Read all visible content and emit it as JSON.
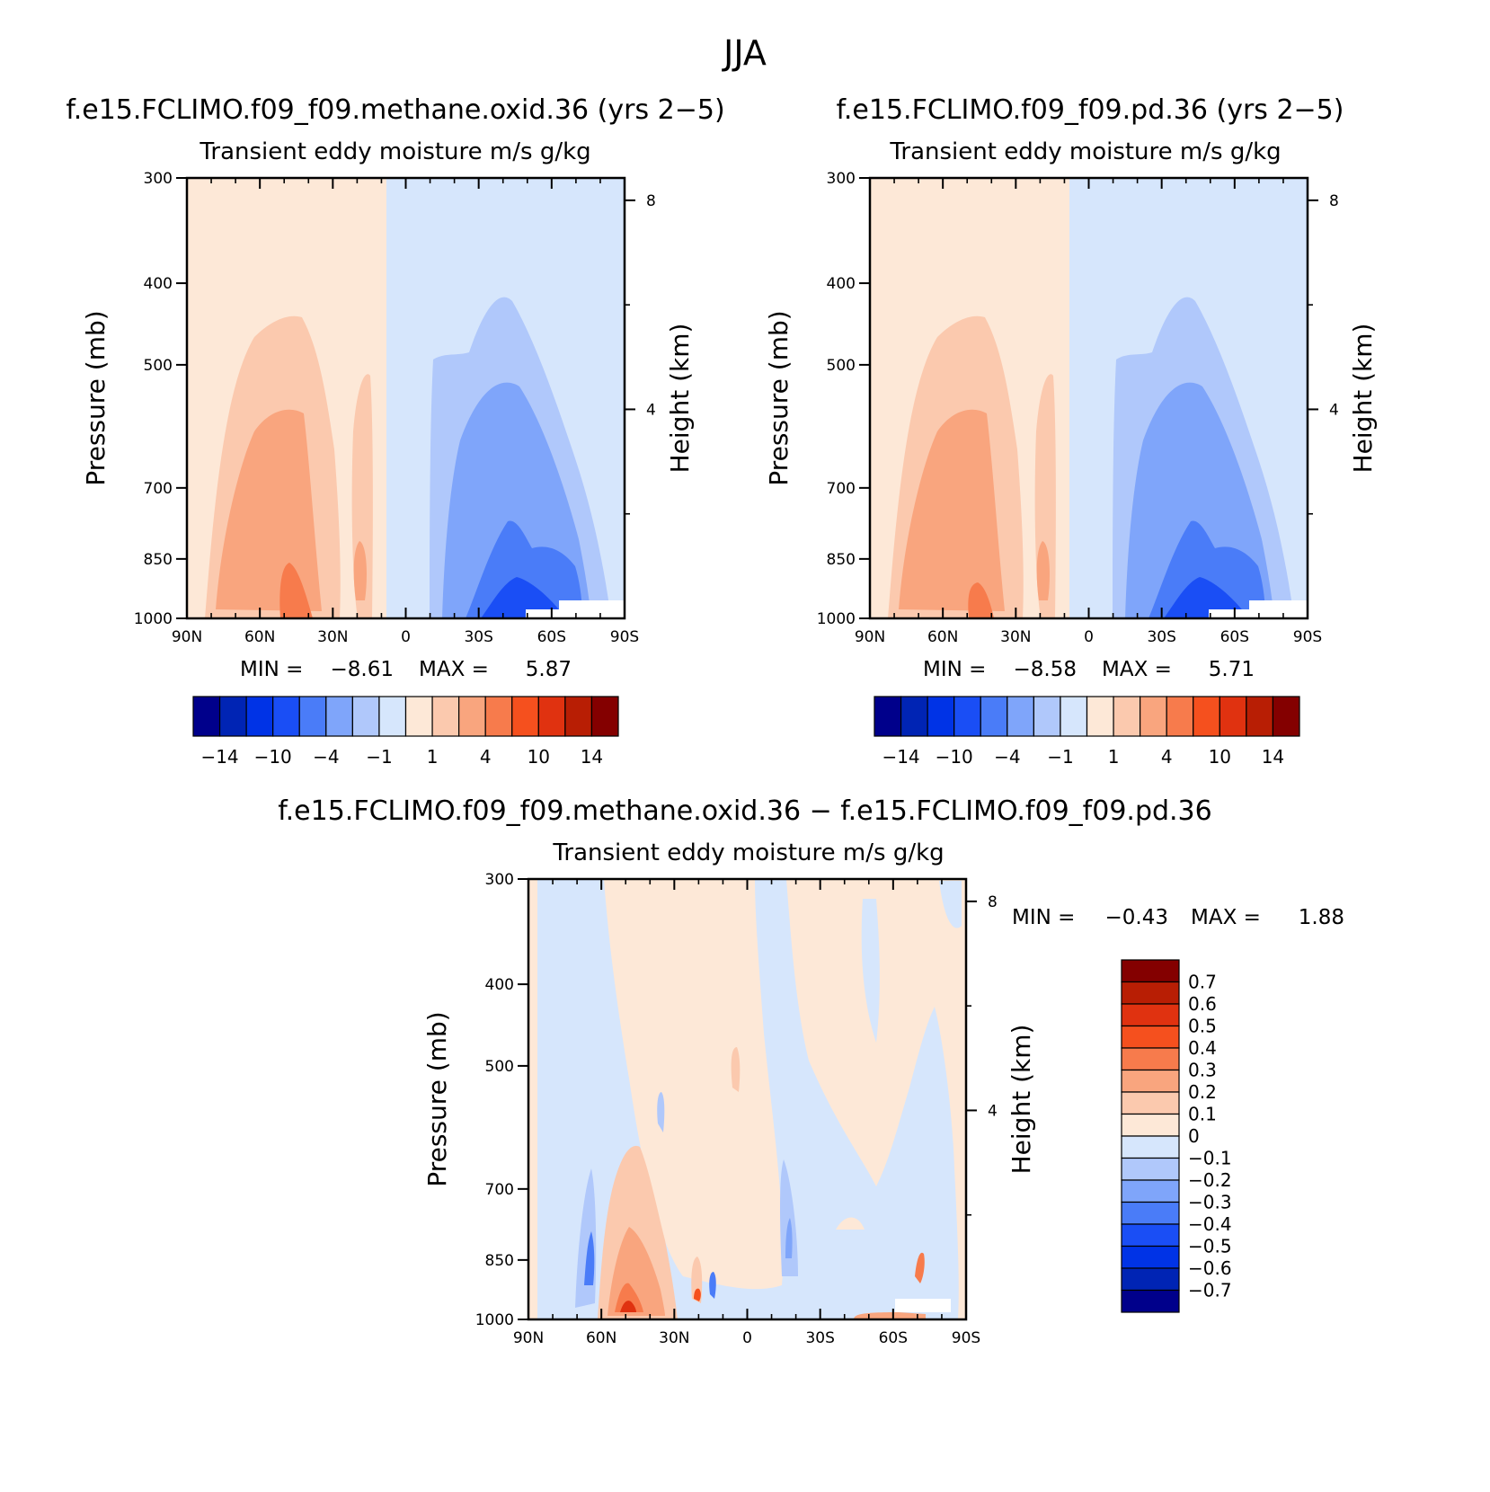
{
  "figure_title": "JJA",
  "palette": {
    "blue": [
      "#00008b",
      "#0024b4",
      "#0033e6",
      "#1a4ef5",
      "#4a7cf8",
      "#7fa5fa",
      "#b0c8fb",
      "#d6e6fc"
    ],
    "red": [
      "#fde8d7",
      "#fbc9ae",
      "#f9a57e",
      "#f77b4c",
      "#f5501e",
      "#e03210",
      "#b81e04",
      "#840000"
    ]
  },
  "chart_data": [
    {
      "type": "contour",
      "id": "panel-methane",
      "title": "f.e15.FCLIMO.f09_f09.methane.oxid.36 (yrs 2−5)",
      "variable": "Transient eddy moisture m/s g/kg",
      "xlabel": "",
      "ylabel": "Pressure (mb)",
      "ylabel_right": "Height (km)",
      "x_ticks": [
        "90N",
        "60N",
        "30N",
        "0",
        "30S",
        "60S",
        "90S"
      ],
      "y_ticks": [
        "300",
        "400",
        "500",
        "700",
        "850",
        "1000"
      ],
      "y_ticks_right": [
        "8",
        "4"
      ],
      "x_range": [
        90,
        -90
      ],
      "y_range_mb": [
        1000,
        300
      ],
      "min_label": "MIN =",
      "min_value": "−8.61",
      "max_label": "MAX =",
      "max_value": "5.87",
      "min": -8.61,
      "max": 5.87,
      "colorbar_labels": [
        "−14",
        "−10",
        "−4",
        "−1",
        "1",
        "4",
        "10",
        "14"
      ]
    },
    {
      "type": "contour",
      "id": "panel-pd",
      "title": "f.e15.FCLIMO.f09_f09.pd.36 (yrs 2−5)",
      "variable": "Transient eddy moisture m/s g/kg",
      "xlabel": "",
      "ylabel": "Pressure (mb)",
      "ylabel_right": "Height (km)",
      "x_ticks": [
        "90N",
        "60N",
        "30N",
        "0",
        "30S",
        "60S",
        "90S"
      ],
      "y_ticks": [
        "300",
        "400",
        "500",
        "700",
        "850",
        "1000"
      ],
      "y_ticks_right": [
        "8",
        "4"
      ],
      "x_range": [
        90,
        -90
      ],
      "y_range_mb": [
        1000,
        300
      ],
      "min_label": "MIN =",
      "min_value": "−8.58",
      "max_label": "MAX =",
      "max_value": "5.71",
      "min": -8.58,
      "max": 5.71,
      "colorbar_labels": [
        "−14",
        "−10",
        "−4",
        "−1",
        "1",
        "4",
        "10",
        "14"
      ]
    },
    {
      "type": "contour",
      "id": "panel-diff",
      "title": "f.e15.FCLIMO.f09_f09.methane.oxid.36 − f.e15.FCLIMO.f09_f09.pd.36",
      "variable": "Transient eddy moisture m/s g/kg",
      "xlabel": "",
      "ylabel": "Pressure (mb)",
      "ylabel_right": "Height (km)",
      "x_ticks": [
        "90N",
        "60N",
        "30N",
        "0",
        "30S",
        "60S",
        "90S"
      ],
      "y_ticks": [
        "300",
        "400",
        "500",
        "700",
        "850",
        "1000"
      ],
      "y_ticks_right": [
        "8",
        "4"
      ],
      "x_range": [
        90,
        -90
      ],
      "y_range_mb": [
        1000,
        300
      ],
      "min_label": "MIN =",
      "min_value": "−0.43",
      "max_label": "MAX =",
      "max_value": "1.88",
      "min": -0.43,
      "max": 1.88,
      "colorbar_labels": [
        "0.7",
        "0.6",
        "0.5",
        "0.4",
        "0.3",
        "0.2",
        "0.1",
        "0",
        "−0.1",
        "−0.2",
        "−0.3",
        "−0.4",
        "−0.5",
        "−0.6",
        "−0.7"
      ]
    }
  ]
}
